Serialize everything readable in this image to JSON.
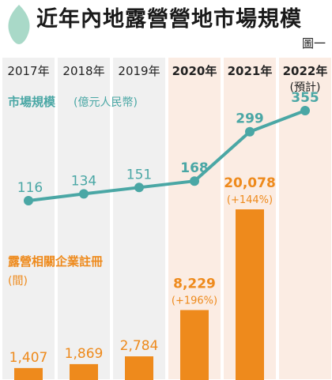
{
  "header": {
    "title": "近年內地露營營地市場規模",
    "figure_label": "圖一"
  },
  "colors": {
    "teal": "#4aa7a5",
    "orange": "#ee8a1c",
    "col_bg": "#f0f0f0",
    "col_bg_highlight": "#fbece3",
    "leaf": "#a9d9c8"
  },
  "chart_data": {
    "type": "bar+line",
    "categories": [
      "2017年",
      "2018年",
      "2019年",
      "2020年",
      "2021年",
      "2022年"
    ],
    "category_notes": [
      "",
      "",
      "",
      "",
      "",
      "(預計)"
    ],
    "highlight": [
      false,
      false,
      false,
      true,
      true,
      true
    ],
    "line_series": {
      "name": "市場規模",
      "unit": "(億元人民幣)",
      "values": [
        116,
        134,
        151,
        168,
        299,
        355
      ]
    },
    "bar_series": {
      "name": "露營相關企業註冊",
      "unit": "(間)",
      "values": [
        1407,
        1869,
        2784,
        8229,
        20078,
        null
      ],
      "labels": [
        "1,407",
        "1,869",
        "2,784",
        "8,229",
        "20,078",
        ""
      ],
      "growth_labels": [
        "",
        "",
        "",
        "(+196%)",
        "(+144%)",
        ""
      ]
    }
  }
}
